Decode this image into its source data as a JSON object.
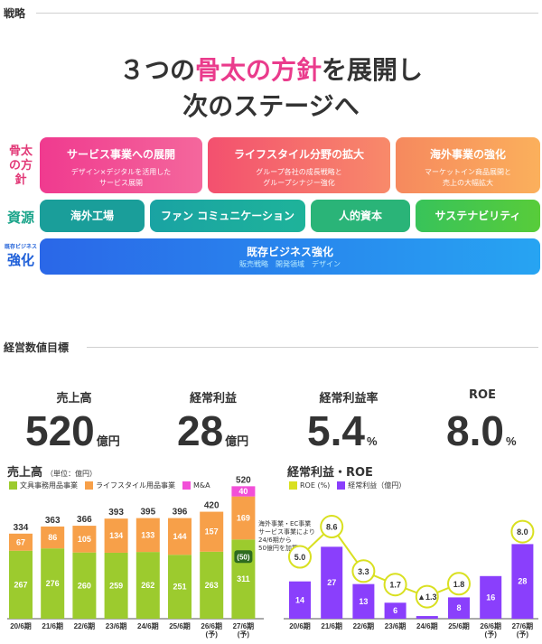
{
  "strategy": {
    "section_title": "戦略",
    "headline": {
      "line1_pre": "３つの",
      "line1_highlight": "骨太の方針",
      "line1_post": "を展開し",
      "line2": "次のステージへ"
    },
    "policy_label": "骨太の方針",
    "resource_label": "資源",
    "strengthen_label_small": "既存ビジネス",
    "strengthen_label": "強化",
    "policies": [
      {
        "title": "サービス事業への展開",
        "desc1": "デザイン×デジタルを活用した",
        "desc2": "サービス展開"
      },
      {
        "title": "ライフスタイル分野の拡大",
        "desc1": "グループ各社の成長戦略と",
        "desc2": "グループシナジー強化"
      },
      {
        "title": "海外事業の強化",
        "desc1": "マーケットイン商品展開と",
        "desc2": "売上の大幅拡大"
      }
    ],
    "resources": [
      "海外工場",
      "ファン コミュニケーション",
      "人的資本",
      "サステナビリティ"
    ],
    "existing": {
      "title": "既存ビジネス強化",
      "desc": "販売戦略　開発領域　デザイン"
    }
  },
  "kpi": {
    "section_title": "経営数値目標",
    "items": [
      {
        "label": "売上高",
        "value": "520",
        "unit": "億円"
      },
      {
        "label": "経常利益",
        "value": "28",
        "unit": "億円"
      },
      {
        "label": "経常利益率",
        "value": "5.4",
        "unit": "%"
      },
      {
        "label": "ROE",
        "value": "8.0",
        "unit": "%"
      }
    ]
  },
  "sales_chart": {
    "title": "売上高",
    "unit_note": "（単位：億円）",
    "legend": [
      "文具事務用品事業",
      "ライフスタイル用品事業",
      "M&A"
    ],
    "colors": {
      "stationery": "#9ccb2e",
      "lifestyle": "#f7a049",
      "ma": "#f24fd8"
    },
    "annotation": [
      "海外事業・EC事業",
      "サービス事業により",
      "24/6期から",
      "50億円を加算"
    ],
    "chart_data": {
      "type": "bar",
      "categories": [
        "20/6期",
        "21/6期",
        "22/6期",
        "23/6期",
        "24/6期",
        "25/6期",
        "26/6期\n(予)",
        "27/6期\n(予)"
      ],
      "series": [
        {
          "name": "文具事務用品事業",
          "values": [
            267,
            276,
            260,
            259,
            262,
            251,
            263,
            311
          ]
        },
        {
          "name": "ライフスタイル用品事業",
          "values": [
            67,
            86,
            105,
            134,
            133,
            144,
            157,
            169
          ]
        },
        {
          "name": "M&A",
          "values": [
            0,
            0,
            0,
            0,
            0,
            0,
            0,
            40
          ]
        }
      ],
      "totals": [
        334,
        363,
        366,
        393,
        395,
        396,
        420,
        520
      ],
      "inset_label": "(50)"
    }
  },
  "profit_chart": {
    "title": "経常利益・ROE",
    "legend": [
      "ROE (%)",
      "経常利益（億円）"
    ],
    "colors": {
      "roe": "#d9e021",
      "profit": "#8a3ffc"
    },
    "chart_data": {
      "type": "bar",
      "categories": [
        "20/6期",
        "21/6期",
        "22/6期",
        "23/6期",
        "24/6期",
        "25/6期",
        "26/6期\n(予)",
        "27/6期\n(予)"
      ],
      "series": [
        {
          "name": "経常利益（億円）",
          "values": [
            14,
            27,
            13,
            6,
            1,
            8,
            16,
            28
          ]
        },
        {
          "name": "ROE (%)",
          "values": [
            5.0,
            8.6,
            3.3,
            1.7,
            -1.3,
            1.8,
            null,
            8.0
          ],
          "labels": [
            "5.0",
            "8.6",
            "3.3",
            "1.7",
            "▲1.3",
            "1.8",
            "",
            "8.0"
          ]
        }
      ]
    }
  }
}
